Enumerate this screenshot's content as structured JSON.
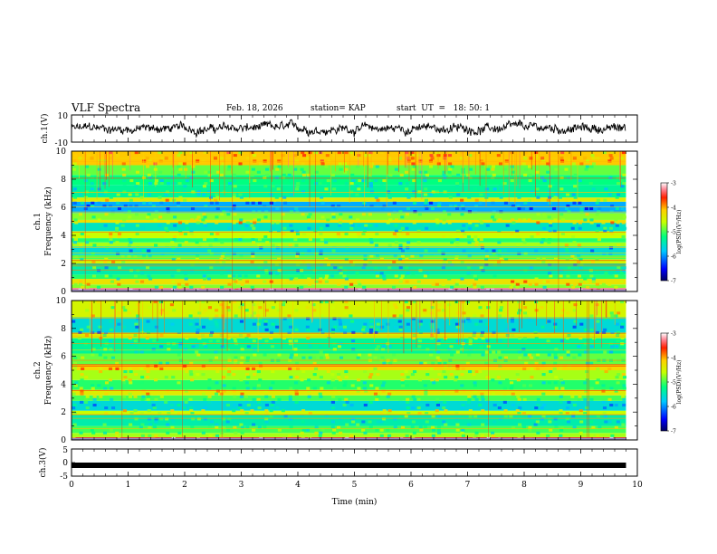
{
  "header": {
    "title": "VLF Spectra",
    "date": "Feb. 18, 2026",
    "station": "station= KAP",
    "start_ut": "start  UT  =   18: 50: 1"
  },
  "chart_data": [
    {
      "type": "line",
      "name": "ch1-waveform",
      "ylabel": "ch.1(V)",
      "ylim": [
        -10,
        10
      ],
      "yticks": [
        "10",
        "-10"
      ],
      "xlim": [
        0,
        10
      ],
      "data_end_min": 9.8,
      "description_series": "noisy waveform, approx. -6 to +6 V"
    },
    {
      "type": "heatmap",
      "name": "ch1-spectrogram",
      "ylabel_line1": "ch.1",
      "ylabel_line2": "Frequency (kHz)",
      "ylim": [
        0,
        10
      ],
      "yticks": [
        "0",
        "2",
        "4",
        "6",
        "8",
        "10"
      ],
      "xlim": [
        0,
        10
      ],
      "data_end_min": 9.8,
      "bands": [
        {
          "range": [
            0,
            0.25
          ],
          "level": -3.3
        },
        {
          "range": [
            0.25,
            0.5
          ],
          "level": -4.8
        },
        {
          "range": [
            0.5,
            0.9
          ],
          "level": -4.3
        },
        {
          "range": [
            0.9,
            1.2
          ],
          "level": -5.1
        },
        {
          "range": [
            1.2,
            2.0
          ],
          "level": -5.4
        },
        {
          "range": [
            2.0,
            2.3
          ],
          "level": -4.5
        },
        {
          "range": [
            2.3,
            2.6
          ],
          "level": -5.0
        },
        {
          "range": [
            2.6,
            3.2
          ],
          "level": -5.6
        },
        {
          "range": [
            3.2,
            3.5
          ],
          "level": -4.7
        },
        {
          "range": [
            3.5,
            3.8
          ],
          "level": -5.1
        },
        {
          "range": [
            3.8,
            4.3
          ],
          "level": -4.6
        },
        {
          "range": [
            4.3,
            4.9
          ],
          "level": -5.5
        },
        {
          "range": [
            4.9,
            5.1
          ],
          "level": -4.3
        },
        {
          "range": [
            5.1,
            5.6
          ],
          "level": -4.8
        },
        {
          "range": [
            5.6,
            6.4
          ],
          "level": -5.9
        },
        {
          "range": [
            6.4,
            6.7
          ],
          "level": -4.4
        },
        {
          "range": [
            6.7,
            7.6
          ],
          "level": -5.3
        },
        {
          "range": [
            7.6,
            8.3
          ],
          "level": -5.2
        },
        {
          "range": [
            8.3,
            9.0
          ],
          "level": -4.9
        },
        {
          "range": [
            9.0,
            10
          ],
          "level": -4.1
        }
      ]
    },
    {
      "type": "heatmap",
      "name": "ch2-spectrogram",
      "ylabel_line1": "ch.2",
      "ylabel_line2": "Frequency (kHz)",
      "ylim": [
        0,
        10
      ],
      "yticks": [
        "0",
        "2",
        "4",
        "6",
        "8",
        "10"
      ],
      "xlim": [
        0,
        10
      ],
      "data_end_min": 9.8,
      "bands": [
        {
          "range": [
            0,
            0.2
          ],
          "level": -3.6
        },
        {
          "range": [
            0.2,
            0.5
          ],
          "level": -4.7
        },
        {
          "range": [
            0.5,
            1.0
          ],
          "level": -5.0
        },
        {
          "range": [
            1.0,
            1.8
          ],
          "level": -5.4
        },
        {
          "range": [
            1.8,
            2.1
          ],
          "level": -4.6
        },
        {
          "range": [
            2.1,
            2.8
          ],
          "level": -5.6
        },
        {
          "range": [
            2.8,
            3.2
          ],
          "level": -5.0
        },
        {
          "range": [
            3.2,
            3.6
          ],
          "level": -4.4
        },
        {
          "range": [
            3.6,
            4.3
          ],
          "level": -5.1
        },
        {
          "range": [
            4.3,
            5.0
          ],
          "level": -4.7
        },
        {
          "range": [
            5.0,
            5.4
          ],
          "level": -4.2
        },
        {
          "range": [
            5.4,
            6.2
          ],
          "level": -4.9
        },
        {
          "range": [
            6.2,
            7.3
          ],
          "level": -5.3
        },
        {
          "range": [
            7.3,
            7.7
          ],
          "level": -4.6
        },
        {
          "range": [
            7.7,
            8.8
          ],
          "level": -5.6
        },
        {
          "range": [
            8.8,
            10
          ],
          "level": -4.5
        }
      ]
    },
    {
      "type": "line",
      "name": "ch3-waveform",
      "ylabel": "ch.3(V)",
      "ylim": [
        -5,
        5
      ],
      "yticks": [
        "5",
        "0",
        "-5"
      ],
      "xlim": [
        0,
        10
      ],
      "constant_value": -1,
      "data_end_min": 9.8
    }
  ],
  "colorbar": {
    "label": "log(PSD)(V²/Hz)",
    "range": [
      -7,
      -3
    ],
    "ticks": [
      "-3",
      "-4",
      "-5",
      "-6",
      "-7"
    ]
  },
  "xaxis": {
    "label": "Time  (min)",
    "ticks": [
      "0",
      "1",
      "2",
      "3",
      "4",
      "5",
      "6",
      "7",
      "8",
      "9",
      "10"
    ]
  }
}
